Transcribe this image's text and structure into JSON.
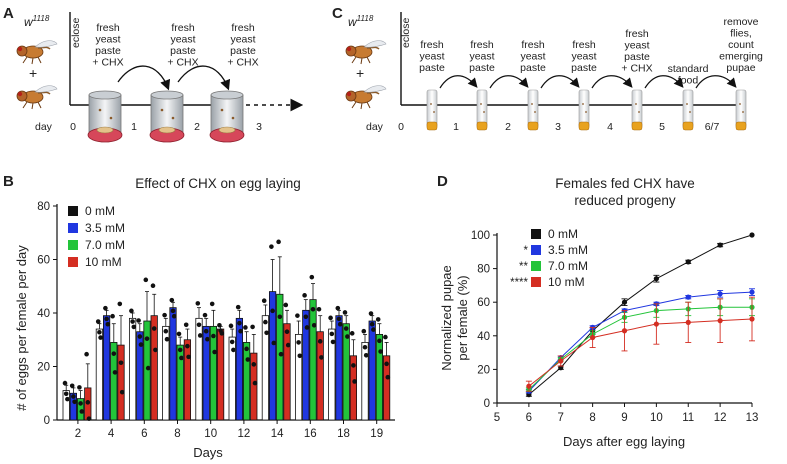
{
  "panels": {
    "A": {
      "label": "A",
      "genotype": "w",
      "genotype_sup": "1118",
      "eclose": "eclose",
      "plus": "+",
      "day_label": "day",
      "day_marks": [
        "0",
        "1",
        "2",
        "3"
      ],
      "steps": [
        [
          "fresh",
          "yeast",
          "paste",
          "+ CHX"
        ],
        [
          "fresh",
          "yeast",
          "paste",
          "+ CHX"
        ],
        [
          "fresh",
          "yeast",
          "paste",
          "+ CHX"
        ]
      ]
    },
    "C": {
      "label": "C",
      "genotype": "w",
      "genotype_sup": "1118",
      "eclose": "eclose",
      "plus": "+",
      "day_label": "day",
      "day_marks": [
        "0",
        "1",
        "2",
        "3",
        "4",
        "5",
        "6/7"
      ],
      "steps": [
        [
          "fresh",
          "yeast",
          "paste"
        ],
        [
          "fresh",
          "yeast",
          "paste"
        ],
        [
          "fresh",
          "yeast",
          "paste"
        ],
        [
          "fresh",
          "yeast",
          "paste"
        ],
        [
          "fresh",
          "yeast",
          "paste",
          "+ CHX"
        ],
        [
          "standard",
          "food"
        ],
        [
          "remove",
          "flies,",
          "count",
          "emerging",
          "pupae"
        ]
      ]
    },
    "B": {
      "label": "B"
    },
    "D": {
      "label": "D"
    }
  },
  "colors": {
    "c0": "#ffffff",
    "c35": "#2037e0",
    "c7": "#23c43a",
    "c10": "#d42e22",
    "black": "#111111"
  },
  "chart_data": [
    {
      "id": "B",
      "type": "bar",
      "title": "Effect of CHX on egg laying",
      "xlabel": "Days",
      "ylabel": "# of eggs per female per day",
      "ylim": [
        0,
        80
      ],
      "yticks": [
        "0",
        "20",
        "40",
        "60",
        "80"
      ],
      "categories": [
        "2",
        "4",
        "6",
        "8",
        "10",
        "12",
        "14",
        "16",
        "18",
        "19"
      ],
      "legend": [
        "0 mM",
        "3.5 mM",
        "7.0 mM",
        "10 mM"
      ],
      "series": [
        {
          "name": "0 mM",
          "values": [
            11,
            34,
            38,
            35,
            38,
            31,
            39,
            32,
            34,
            29
          ],
          "err": [
            2,
            2,
            2,
            3,
            4,
            3,
            4,
            5,
            3,
            3
          ]
        },
        {
          "name": "3.5 mM",
          "values": [
            10,
            39,
            33,
            42,
            35,
            38,
            48,
            41,
            39,
            37
          ],
          "err": [
            2,
            2,
            3,
            2,
            3,
            3,
            12,
            4,
            2,
            2
          ]
        },
        {
          "name": "7.0 mM",
          "values": [
            8,
            29,
            37,
            28,
            35,
            29,
            47,
            45,
            36,
            32
          ],
          "err": [
            3,
            7,
            11,
            3,
            6,
            4,
            14,
            6,
            3,
            4
          ]
        },
        {
          "name": "10 mM",
          "values": [
            12,
            28,
            39,
            30,
            34,
            25,
            36,
            33,
            24,
            24
          ],
          "err": [
            9,
            11,
            8,
            4,
            1,
            7,
            5,
            6,
            6,
            5
          ]
        }
      ]
    },
    {
      "id": "D",
      "type": "line",
      "title": [
        "Females fed CHX have",
        "reduced progeny"
      ],
      "xlabel": "Days after egg laying",
      "ylabel": [
        "Normalized pupae",
        "per female (%)"
      ],
      "xlim": [
        5,
        13
      ],
      "ylim": [
        0,
        100
      ],
      "xticks": [
        "5",
        "6",
        "7",
        "8",
        "9",
        "10",
        "11",
        "12",
        "13"
      ],
      "yticks": [
        "0",
        "20",
        "40",
        "60",
        "80",
        "100"
      ],
      "x": [
        6,
        7,
        8,
        9,
        10,
        11,
        12,
        13
      ],
      "legend": [
        "0 mM",
        "3.5 mM",
        "7.0 mM",
        "10 mM"
      ],
      "significance": [
        "",
        "*",
        "**",
        "****"
      ],
      "series": [
        {
          "name": "0 mM",
          "values": [
            5,
            21,
            43,
            60,
            74,
            84,
            94,
            100
          ],
          "err": [
            1,
            1,
            2,
            2,
            2,
            1,
            1,
            0
          ]
        },
        {
          "name": "3.5 mM",
          "values": [
            7,
            27,
            45,
            55,
            59,
            63,
            65,
            66
          ],
          "err": [
            1,
            1,
            1,
            1,
            1,
            1,
            2,
            2
          ]
        },
        {
          "name": "7.0 mM",
          "values": [
            8,
            26,
            41,
            51,
            55,
            56,
            57,
            57
          ],
          "err": [
            1,
            1,
            2,
            3,
            4,
            4,
            5,
            5
          ]
        },
        {
          "name": "10 mM",
          "values": [
            10,
            25,
            39,
            43,
            47,
            48,
            49,
            50
          ],
          "err": [
            3,
            3,
            6,
            12,
            12,
            12,
            13,
            13
          ]
        }
      ]
    }
  ]
}
